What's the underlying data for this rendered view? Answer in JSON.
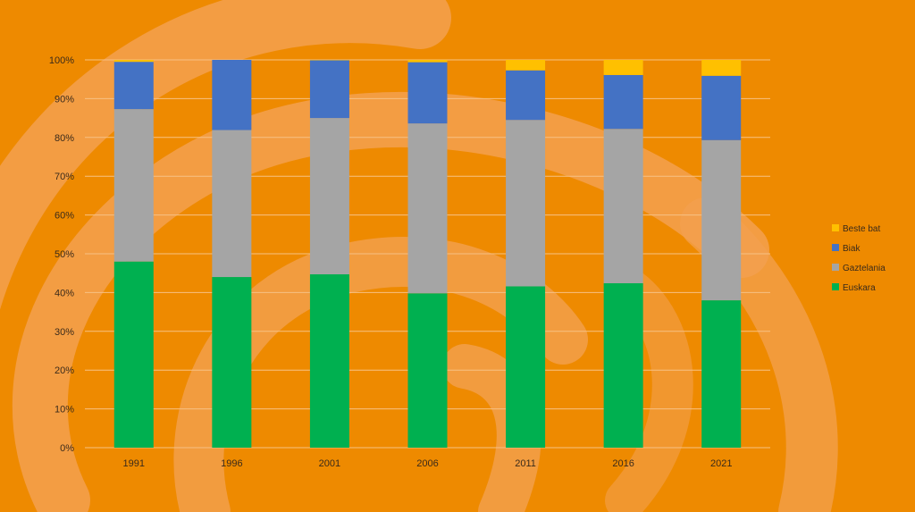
{
  "chart_data": {
    "type": "bar",
    "stacked": true,
    "percent": true,
    "categories": [
      "1991",
      "1996",
      "2001",
      "2006",
      "2011",
      "2016",
      "2021"
    ],
    "series": [
      {
        "name": "Euskara",
        "color": "#00b050",
        "values": [
          48,
          44,
          44.7,
          39.8,
          41.6,
          42.4,
          38
        ]
      },
      {
        "name": "Gaztelania",
        "color": "#a5a5a5",
        "values": [
          39.3,
          37.9,
          40.3,
          43.8,
          42.9,
          39.8,
          41.3
        ]
      },
      {
        "name": "Biak",
        "color": "#4472c4",
        "values": [
          12.2,
          18.1,
          14.9,
          15.8,
          12.8,
          13.9,
          16.6
        ]
      },
      {
        "name": "Beste bat",
        "color": "#ffc000",
        "values": [
          0.5,
          0,
          0.1,
          0.6,
          2.7,
          3.9,
          4.1
        ]
      }
    ],
    "y_ticks": [
      "0%",
      "10%",
      "20%",
      "30%",
      "40%",
      "50%",
      "60%",
      "70%",
      "80%",
      "90%",
      "100%"
    ],
    "ylim": [
      0,
      100
    ],
    "legend": [
      "Beste bat",
      "Biak",
      "Gaztelania",
      "Euskara"
    ],
    "legend_position": "right",
    "grid": true
  },
  "colors": {
    "background": "#ee8a00",
    "decor": "#f3a04f",
    "gridline": "#f7c184"
  }
}
